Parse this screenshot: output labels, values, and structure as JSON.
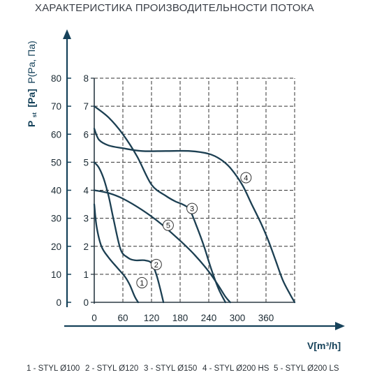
{
  "chart_data": {
    "type": "line",
    "title": "ХАРАКТЕРИСТИКА ПРОИЗВОДИТЕЛЬНОСТИ ПОТОКА",
    "xlabel": "V[m³/h]",
    "ylabel_left_prefix": "P",
    "ylabel_left_subscript": "st",
    "ylabel_left_unit": "[Pa]",
    "ylabel_right": "P(Pa, Па)",
    "xlim": [
      0,
      420
    ],
    "ylim": [
      0,
      80
    ],
    "x_ticks": [
      "0",
      "60",
      "120",
      "180",
      "240",
      "300",
      "360"
    ],
    "y_ticks_outer": [
      "0",
      "10",
      "20",
      "30",
      "40",
      "50",
      "60",
      "70",
      "80"
    ],
    "y_ticks_inner": [
      "0",
      "1",
      "2",
      "3",
      "4",
      "5",
      "6",
      "7",
      "8"
    ],
    "grid": true,
    "series": [
      {
        "label": "1",
        "x": [
          0,
          5,
          15,
          30,
          50,
          65,
          75,
          85,
          92
        ],
        "y": [
          35,
          27,
          20,
          16,
          12,
          9,
          6,
          2,
          0
        ]
      },
      {
        "label": "2",
        "x": [
          0,
          10,
          20,
          30,
          40,
          55,
          70,
          85,
          105,
          120,
          130,
          138,
          145
        ],
        "y": [
          50,
          48,
          44,
          38,
          30,
          19,
          16,
          15,
          15,
          14,
          10,
          5,
          0
        ]
      },
      {
        "label": "3",
        "x": [
          0,
          30,
          60,
          90,
          120,
          150,
          170,
          185,
          200,
          215,
          230,
          245,
          260,
          275
        ],
        "y": [
          70,
          66,
          60,
          52,
          42,
          38,
          36,
          35,
          33,
          27,
          20,
          12,
          5,
          0
        ]
      },
      {
        "label": "4",
        "x": [
          0,
          10,
          30,
          60,
          100,
          150,
          200,
          240,
          265,
          285,
          310,
          330,
          350,
          365,
          380,
          395,
          410,
          420
        ],
        "y": [
          62,
          58,
          56,
          55,
          54,
          54,
          54,
          53,
          51,
          48,
          42,
          35,
          28,
          22,
          15,
          8,
          3,
          0
        ]
      },
      {
        "label": "5",
        "x": [
          0,
          30,
          60,
          100,
          140,
          180,
          210,
          240,
          260,
          275,
          285
        ],
        "y": [
          40,
          39,
          37,
          33,
          28,
          22,
          17,
          11,
          6,
          2,
          0
        ]
      }
    ],
    "legend": [
      "1 - STYL Ø100",
      "2 - STYL Ø120",
      "3 - STYL Ø150",
      "4 - STYL Ø200 HS",
      "5 - STYL Ø200 LS"
    ],
    "legend_placement": "bottom",
    "curve_label_positions": [
      {
        "label": "1",
        "x": 100,
        "y": 7
      },
      {
        "label": "2",
        "x": 130,
        "y": 13.5
      },
      {
        "label": "3",
        "x": 205,
        "y": 33.5
      },
      {
        "label": "4",
        "x": 318,
        "y": 44.5
      },
      {
        "label": "5",
        "x": 155,
        "y": 27.5
      }
    ]
  },
  "colors": {
    "curve": "#1c3f52",
    "axis": "#16425a",
    "grid": "#333333",
    "title": "#3a3f47"
  }
}
